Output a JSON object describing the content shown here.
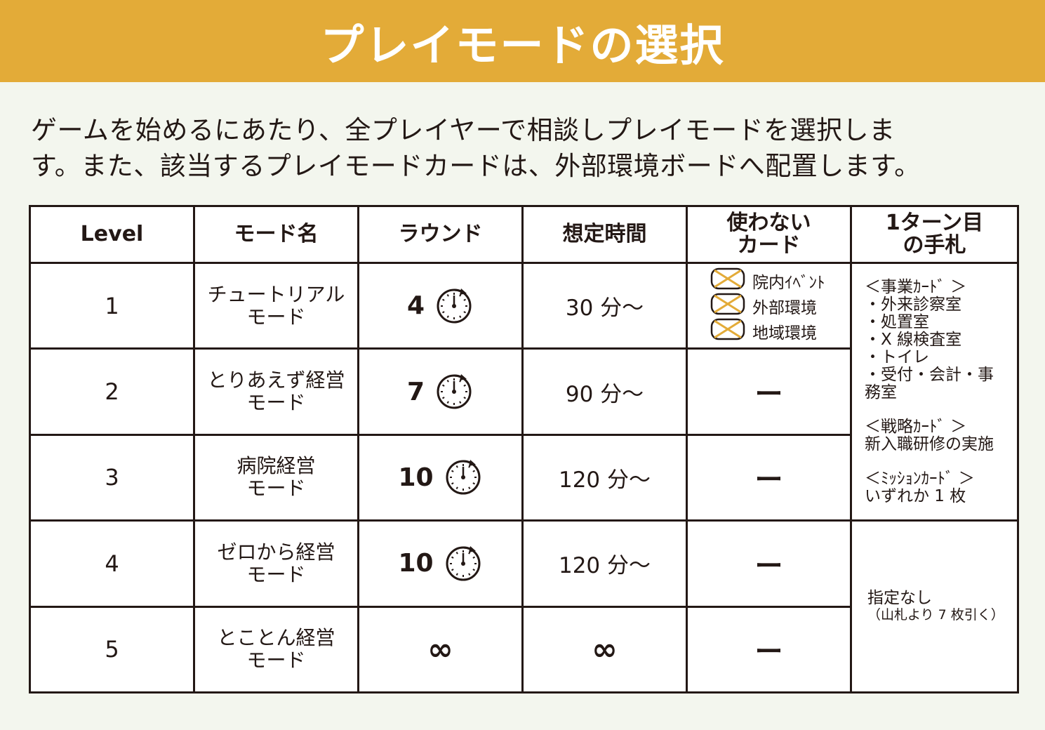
{
  "title": "プレイモードの選択",
  "intro_line1": "ゲームを始めるにあたり、全プレイヤーで相談しプレイモードを選択しま",
  "intro_line2": "す。また、該当するプレイモードカードは、外部環境ボードへ配置します。",
  "headers": {
    "level": "Level",
    "mode": "モード名",
    "round": "ラウンド",
    "time": "想定時間",
    "unused_1": "使わない",
    "unused_2": "カード",
    "hand_1": "1ターン目",
    "hand_2": "の手札"
  },
  "rows": [
    {
      "level": "1",
      "mode_1": "チュートリアル",
      "mode_2": "モード",
      "round": "4",
      "time": "30 分〜"
    },
    {
      "level": "2",
      "mode_1": "とりあえず経営",
      "mode_2": "モード",
      "round": "7",
      "time": "90 分〜",
      "unused": "ー"
    },
    {
      "level": "3",
      "mode_1": "病院経営",
      "mode_2": "モード",
      "round": "10",
      "time": "120 分〜",
      "unused": "ー"
    },
    {
      "level": "4",
      "mode_1": "ゼロから経営",
      "mode_2": "モード",
      "round": "10",
      "time": "120 分〜",
      "unused": "ー"
    },
    {
      "level": "5",
      "mode_1": "とことん経営",
      "mode_2": "モード",
      "round": "∞",
      "time": "∞",
      "unused": "ー"
    }
  ],
  "unused_cards_tutorial": [
    "院内ｲﾍﾞﾝﾄ",
    "外部環境",
    "地域環境"
  ],
  "hand_1_3": {
    "business_title": "＜事業ｶｰﾄﾞ ＞",
    "business_items": [
      "・外来診察室",
      "・処置室",
      "・X 線検査室",
      "・トイレ",
      "・受付・会計・事",
      "務室"
    ],
    "strategy_title": "＜戦略ｶｰﾄﾞ ＞",
    "strategy_item": "新入職研修の実施",
    "mission_title": "＜ﾐｯｼｮﾝｶｰﾄﾞ ＞",
    "mission_item": "いずれか 1 枚"
  },
  "hand_4_5": {
    "line1": "指定なし",
    "line2": "（山札より 7 枚引く）"
  },
  "icons": {
    "round_timer": "stopwatch-icon",
    "unused_mark": "crossed-card-icon"
  },
  "colors": {
    "header_bg": "#e3ab38",
    "page_bg": "#f3f6ee",
    "cross_mark": "#e3ab38"
  }
}
